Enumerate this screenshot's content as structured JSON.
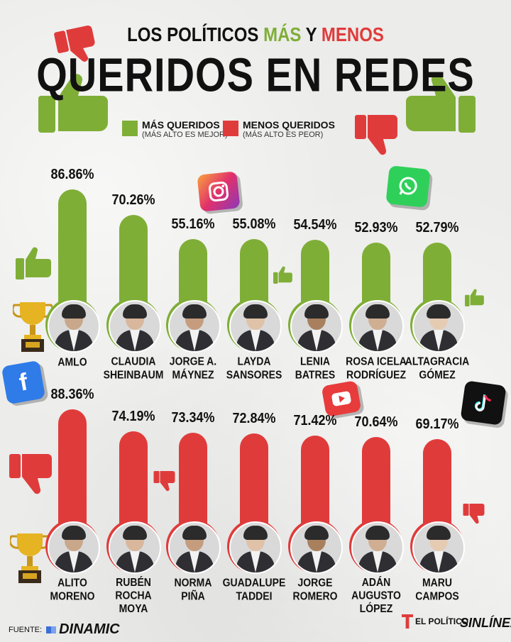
{
  "chart_data": [
    {
      "type": "bar",
      "title_parts": [
        "LOS POLÍTICOS",
        "MÁS",
        "Y",
        "MENOS"
      ],
      "title_main": "QUERIDOS EN REDES",
      "categories": [
        "AMLO",
        "CLAUDIA SHEINBAUM",
        "JORGE A. MÁYNEZ",
        "LAYDA SANSORES",
        "LENIA BATRES",
        "ROSA ICELA RODRÍGUEZ",
        "ALTAGRACIA GÓMEZ"
      ],
      "series": [
        {
          "name": "MÁS QUERIDOS",
          "note": "(MÁS ALTO ES MEJOR)",
          "values": [
            86.86,
            70.26,
            55.16,
            55.08,
            54.54,
            52.93,
            52.79
          ],
          "labels": [
            "86.86%",
            "70.26%",
            "55.16%",
            "55.08%",
            "54.54%",
            "52.93%",
            "52.79%"
          ],
          "color": "#7fae37"
        }
      ]
    },
    {
      "type": "bar",
      "categories": [
        "ALITO MORENO",
        "RUBÉN ROCHA MOYA",
        "NORMA PIÑA",
        "GUADALUPE TADDEI",
        "JORGE ROMERO",
        "ADÁN AUGUSTO LÓPEZ",
        "MARU CAMPOS"
      ],
      "series": [
        {
          "name": "MENOS QUERIDOS",
          "note": "(MÁS ALTO ES PEOR)",
          "values": [
            88.36,
            74.19,
            73.34,
            72.84,
            71.42,
            70.64,
            69.17
          ],
          "labels": [
            "88.36%",
            "74.19%",
            "73.34%",
            "72.84%",
            "71.42%",
            "70.64%",
            "69.17%"
          ],
          "color": "#e03b3b"
        }
      ]
    }
  ],
  "names_top": [
    [
      "AMLO"
    ],
    [
      "CLAUDIA",
      "SHEINBAUM"
    ],
    [
      "JORGE A.",
      "MÁYNEZ"
    ],
    [
      "LAYDA",
      "SANSORES"
    ],
    [
      "LENIA",
      "BATRES"
    ],
    [
      "ROSA ICELA",
      "RODRÍGUEZ"
    ],
    [
      "ALTAGRACIA",
      "GÓMEZ"
    ]
  ],
  "names_bottom": [
    [
      "ALITO",
      "MORENO"
    ],
    [
      "RUBÉN",
      "ROCHA",
      "MOYA"
    ],
    [
      "NORMA",
      "PIÑA"
    ],
    [
      "GUADALUPE",
      "TADDEI"
    ],
    [
      "JORGE",
      "ROMERO"
    ],
    [
      "ADÁN",
      "AUGUSTO",
      "LÓPEZ"
    ],
    [
      "MARU",
      "CAMPOS"
    ]
  ],
  "footer": {
    "source_label": "FUENTE:",
    "source_brand": "DINAMIC",
    "logo_1": "EL POLÍTICO.",
    "logo_2": "SINLÍNEA"
  }
}
